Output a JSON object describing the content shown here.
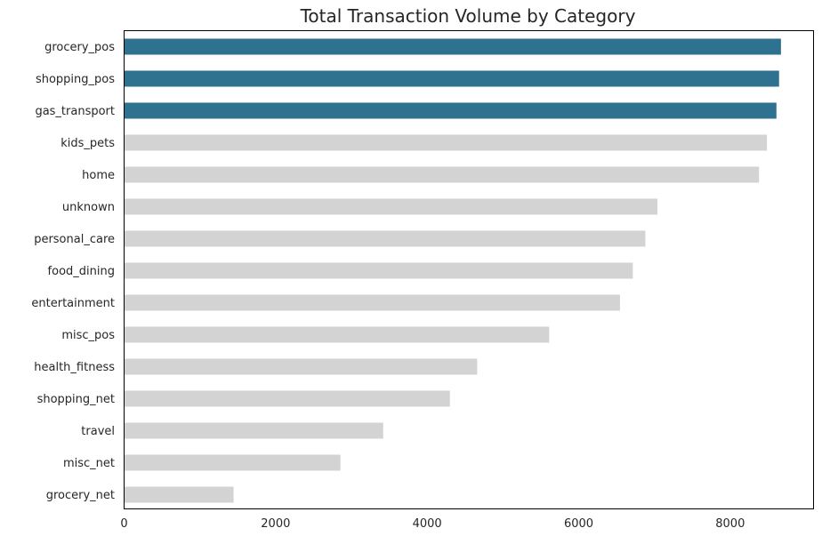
{
  "chart_data": {
    "type": "bar",
    "orientation": "horizontal",
    "title": "Total Transaction Volume by Category",
    "xlabel": "",
    "ylabel": "",
    "xlim": [
      0,
      9100
    ],
    "xticks": [
      0,
      2000,
      4000,
      6000,
      8000
    ],
    "xtick_labels": [
      "0",
      "2000",
      "4000",
      "6000",
      "8000"
    ],
    "categories": [
      "grocery_pos",
      "shopping_pos",
      "gas_transport",
      "kids_pets",
      "home",
      "unknown",
      "personal_care",
      "food_dining",
      "entertainment",
      "misc_pos",
      "health_fitness",
      "shopping_net",
      "travel",
      "misc_net",
      "grocery_net"
    ],
    "values": [
      8670,
      8645,
      8610,
      8485,
      8380,
      7040,
      6880,
      6715,
      6545,
      5610,
      4660,
      4300,
      3420,
      2855,
      1445
    ],
    "highlight_count": 3,
    "colors": {
      "highlight": "#2e728f",
      "default": "#d3d3d3",
      "axis": "#000000",
      "text": "#262626"
    },
    "grid": false,
    "legend": "none"
  }
}
